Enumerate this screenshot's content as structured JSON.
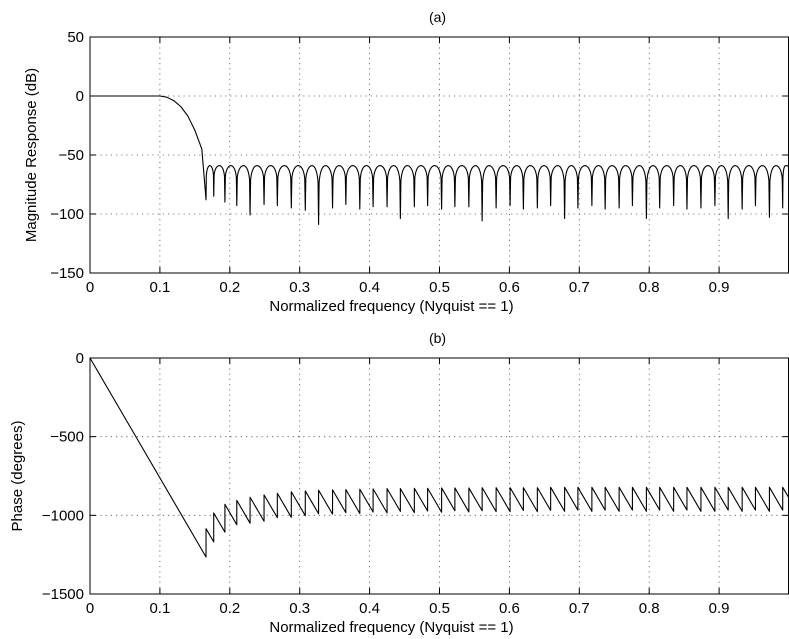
{
  "chart_data": [
    {
      "type": "line",
      "title": "(a)",
      "xlabel": "Normalized frequency (Nyquist == 1)",
      "ylabel": "Magnitude Response (dB)",
      "xlim": [
        0,
        1
      ],
      "ylim": [
        -150,
        50
      ],
      "xticks": [
        0,
        0.1,
        0.2,
        0.3,
        0.4,
        0.5,
        0.6,
        0.7,
        0.8,
        0.9
      ],
      "xtick_labels": [
        "0",
        "0.1",
        "0.2",
        "0.3",
        "0.4",
        "0.5",
        "0.6",
        "0.7",
        "0.8",
        "0.9"
      ],
      "yticks": [
        50,
        0,
        -50,
        -100,
        -150
      ],
      "ytick_labels": [
        "50",
        "0",
        "−50",
        "−100",
        "−150"
      ],
      "grid": true,
      "series": [
        {
          "passband": {
            "x": [
              0,
              0.1
            ],
            "y": [
              0,
              0
            ]
          },
          "transition": {
            "x": [
              0.1,
              0.11,
              0.12,
              0.13,
              0.14,
              0.15,
              0.16,
              0.166
            ],
            "y": [
              0,
              -1,
              -4,
              -9,
              -17,
              -29,
              -45,
              -88
            ]
          },
          "stopband_ripple_peak_db": -59,
          "stopband_null_frequencies": [
            0.166,
            0.177,
            0.193,
            0.21,
            0.229,
            0.249,
            0.268,
            0.288,
            0.308,
            0.327,
            0.347,
            0.366,
            0.386,
            0.405,
            0.425,
            0.444,
            0.464,
            0.483,
            0.503,
            0.522,
            0.542,
            0.561,
            0.581,
            0.601,
            0.62,
            0.64,
            0.659,
            0.679,
            0.698,
            0.718,
            0.737,
            0.757,
            0.776,
            0.796,
            0.815,
            0.835,
            0.854,
            0.874,
            0.894,
            0.913,
            0.933,
            0.952,
            0.972,
            0.991
          ],
          "stopband_null_depths_db": [
            -88,
            -85,
            -90,
            -93,
            -101,
            -92,
            -93,
            -95,
            -97,
            -109,
            -95,
            -92,
            -96,
            -94,
            -94,
            -104,
            -94,
            -93,
            -96,
            -94,
            -94,
            -106,
            -95,
            -93,
            -96,
            -95,
            -93,
            -104,
            -95,
            -93,
            -96,
            -95,
            -93,
            -104,
            -95,
            -93,
            -96,
            -95,
            -93,
            -104,
            -96,
            -93,
            -103,
            -95
          ]
        }
      ]
    },
    {
      "type": "line",
      "title": "(b)",
      "xlabel": "Normalized frequency (Nyquist == 1)",
      "ylabel": "Phase (degrees)",
      "xlim": [
        0,
        1
      ],
      "ylim": [
        -1500,
        0
      ],
      "xticks": [
        0,
        0.1,
        0.2,
        0.3,
        0.4,
        0.5,
        0.6,
        0.7,
        0.8,
        0.9
      ],
      "xtick_labels": [
        "0",
        "0.1",
        "0.2",
        "0.3",
        "0.4",
        "0.5",
        "0.6",
        "0.7",
        "0.8",
        "0.9"
      ],
      "yticks": [
        0,
        -500,
        -1000,
        -1500
      ],
      "ytick_labels": [
        "0",
        "−500",
        "−1000",
        "−1500"
      ],
      "grid": true,
      "series": [
        {
          "linear": {
            "x": [
              0,
              0.166
            ],
            "y": [
              0,
              -1265
            ]
          },
          "sawtooth_jump_frequencies": [
            0.166,
            0.177,
            0.193,
            0.21,
            0.229,
            0.249,
            0.268,
            0.288,
            0.308,
            0.327,
            0.347,
            0.366,
            0.386,
            0.405,
            0.425,
            0.444,
            0.464,
            0.483,
            0.503,
            0.522,
            0.542,
            0.561,
            0.581,
            0.601,
            0.62,
            0.64,
            0.659,
            0.679,
            0.698,
            0.718,
            0.737,
            0.757,
            0.776,
            0.796,
            0.815,
            0.835,
            0.854,
            0.874,
            0.894,
            0.913,
            0.933,
            0.952,
            0.972,
            0.991
          ],
          "sawtooth_top_degrees": [
            -1085,
            -985,
            -930,
            -905,
            -885,
            -870,
            -860,
            -850,
            -845,
            -840,
            -838,
            -836,
            -834,
            -832,
            -830,
            -830,
            -828,
            -828,
            -826,
            -826,
            -826,
            -824,
            -824,
            -824,
            -824,
            -824,
            -822,
            -822,
            -822,
            -822,
            -822,
            -822,
            -822,
            -822,
            -822,
            -822,
            -822,
            -822,
            -822,
            -822,
            -822,
            -822,
            -822,
            -822
          ]
        }
      ]
    }
  ]
}
